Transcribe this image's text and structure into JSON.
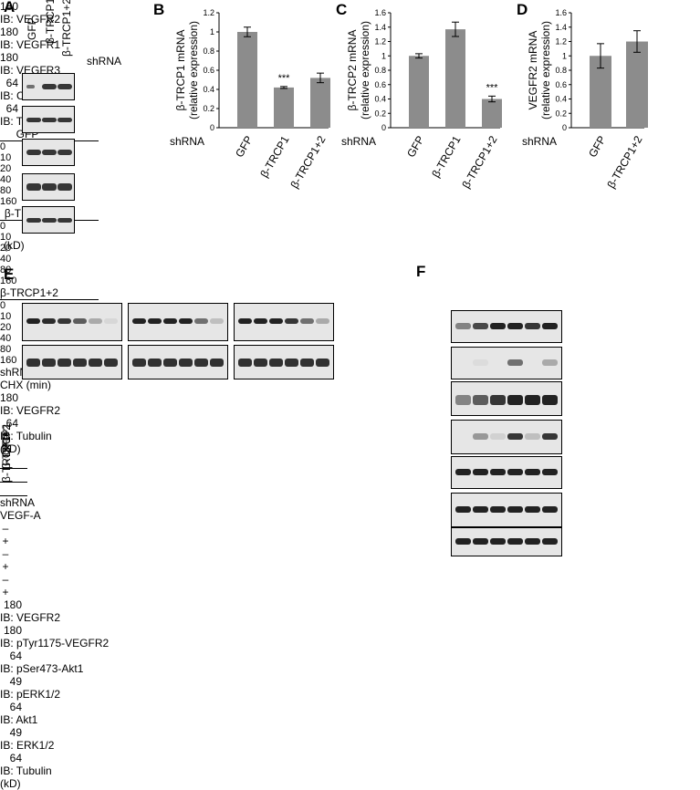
{
  "panels": {
    "A": {
      "letter": "A",
      "lanes": [
        "GFP",
        "β-TRCP1",
        "β-TRCP1+2"
      ],
      "shrna": "shRNA",
      "blots": [
        {
          "mw": "180",
          "ib": "IB: VEGFR2"
        },
        {
          "mw": "180",
          "ib": "IB: VEGFR1"
        },
        {
          "mw": "180",
          "ib": "IB: VEGFR3"
        },
        {
          "mw": "64",
          "ib": "IB: CCM3"
        },
        {
          "mw": "64",
          "ib": "IB: Tubulin"
        }
      ],
      "kd": "(kD)"
    },
    "E": {
      "letter": "E",
      "groups": [
        "GFP",
        "β-TRCP1",
        "β-TRCP1+2"
      ],
      "times": [
        "0",
        "10",
        "20",
        "40",
        "80",
        "160"
      ],
      "shrna": "shRNA",
      "chx": "CHX (min)",
      "blots": [
        {
          "mw": "180",
          "ib": "IB: VEGFR2"
        },
        {
          "mw": "64",
          "ib": "IB: Tubulin"
        }
      ],
      "kd": "(kD)"
    },
    "F": {
      "letter": "F",
      "lanes": [
        "GFP",
        "β-TRCP1",
        "β-TRCP1+2"
      ],
      "shrna": "shRNA",
      "vegfa": "VEGF-A",
      "signs": [
        "–",
        "+",
        "–",
        "+",
        "–",
        "+"
      ],
      "blots": [
        {
          "mw": "180",
          "ib": "IB: VEGFR2"
        },
        {
          "mw": "180",
          "ib": "IB: pTyr1175-VEGFR2"
        },
        {
          "mw": "64",
          "ib": "IB: pSer473-Akt1"
        },
        {
          "mw": "49",
          "ib": "IB: pERK1/2"
        },
        {
          "mw": "64",
          "ib": "IB: Akt1"
        },
        {
          "mw": "49",
          "ib": "IB: ERK1/2"
        },
        {
          "mw": "64",
          "ib": "IB: Tubulin"
        }
      ],
      "kd": "(kD)"
    }
  },
  "chart_data": [
    {
      "panel": "B",
      "type": "bar",
      "categories": [
        "GFP",
        "β-TRCP1",
        "β-TRCP1+2"
      ],
      "values": [
        1.0,
        0.42,
        0.52
      ],
      "errors": [
        0.05,
        0.01,
        0.05
      ],
      "significance": [
        "",
        "***",
        ""
      ],
      "ylabel": "β-TRCP1 mRNA (relative expression)",
      "ylabel_lines": [
        "β-TRCP1 mRNA",
        "(relative expression)"
      ],
      "xlabel": "shRNA",
      "ylim": [
        0,
        1.2
      ],
      "yticks": [
        "0",
        "0.2",
        "0.4",
        "0.6",
        "0.8",
        "1",
        "1.2"
      ],
      "bar_color": "#8c8c8c"
    },
    {
      "panel": "C",
      "type": "bar",
      "categories": [
        "GFP",
        "β-TRCP1",
        "β-TRCP1+2"
      ],
      "values": [
        1.0,
        1.37,
        0.4
      ],
      "errors": [
        0.03,
        0.1,
        0.04
      ],
      "significance": [
        "",
        "",
        "***"
      ],
      "ylabel": "β-TRCP2 mRNA (relative expression)",
      "ylabel_lines": [
        "β-TRCP2 mRNA",
        "(relative expression)"
      ],
      "xlabel": "shRNA",
      "ylim": [
        0,
        1.6
      ],
      "yticks": [
        "0",
        "0.2",
        "0.4",
        "0.6",
        "0.8",
        "1",
        "1.2",
        "1.4",
        "1.6"
      ],
      "bar_color": "#8c8c8c"
    },
    {
      "panel": "D",
      "type": "bar",
      "categories": [
        "GFP",
        "β-TRCP1+2"
      ],
      "values": [
        1.0,
        1.2
      ],
      "errors": [
        0.17,
        0.15
      ],
      "significance": [
        "",
        ""
      ],
      "ylabel": "VEGFR2 mRNA (relative expression)",
      "ylabel_lines": [
        "VEGFR2 mRNA",
        "(relative expression)"
      ],
      "xlabel": "shRNA",
      "ylim": [
        0,
        1.6
      ],
      "yticks": [
        "0",
        "0.2",
        "0.4",
        "0.6",
        "0.8",
        "1",
        "1.2",
        "1.4",
        "1.6"
      ],
      "bar_color": "#8c8c8c"
    }
  ]
}
